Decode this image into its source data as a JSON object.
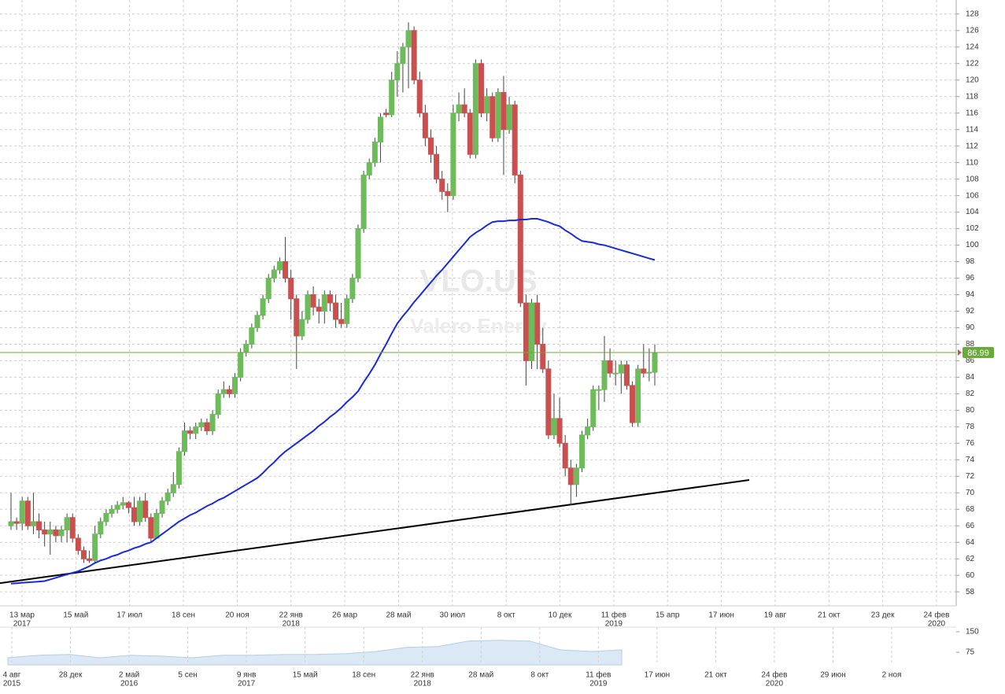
{
  "chart_data": {
    "type": "candlestick",
    "watermark": "VLO.US",
    "watermark_subtitle": "Valero Energy",
    "up_color": "#6dbb5a",
    "down_color": "#c9504f",
    "grid": true,
    "ylim": [
      56.3,
      129.7
    ],
    "yticks": [
      58,
      60,
      62,
      64,
      66,
      68,
      70,
      72,
      74,
      76,
      78,
      80,
      82,
      84,
      86,
      88,
      90,
      92,
      94,
      96,
      98,
      100,
      102,
      104,
      106,
      108,
      110,
      112,
      114,
      116,
      118,
      120,
      122,
      124,
      126,
      128
    ],
    "xtick_labels": [
      [
        "13 мар",
        "2017"
      ],
      [
        "15 май"
      ],
      [
        "17 июл"
      ],
      [
        "18 сен"
      ],
      [
        "20 ноя"
      ],
      [
        "22 янв",
        "2018"
      ],
      [
        "26 мар"
      ],
      [
        "28 май"
      ],
      [
        "30 июл"
      ],
      [
        "8 окт"
      ],
      [
        "10 дек"
      ],
      [
        "11 фев",
        "2019"
      ],
      [
        "15 апр"
      ],
      [
        "17 июн"
      ],
      [
        "19 авг"
      ],
      [
        "21 окт"
      ],
      [
        "23 дек"
      ],
      [
        "24 фев",
        "2020"
      ]
    ],
    "ohlc": [
      [
        66,
        70,
        65.5,
        66.5
      ],
      [
        66.5,
        67,
        65.5,
        66.3
      ],
      [
        66.3,
        69.5,
        65.5,
        69
      ],
      [
        69,
        69.5,
        65.5,
        66
      ],
      [
        66,
        70,
        65,
        66.5
      ],
      [
        66.5,
        67.5,
        64.5,
        65.5
      ],
      [
        65.5,
        66.5,
        63.5,
        65
      ],
      [
        65,
        66.5,
        62.5,
        65.5
      ],
      [
        65.5,
        66,
        64,
        64.8
      ],
      [
        64.8,
        66,
        64,
        65.5
      ],
      [
        65.5,
        67.5,
        64,
        67
      ],
      [
        67,
        67.5,
        64,
        64.5
      ],
      [
        64.5,
        65,
        62.5,
        63
      ],
      [
        63,
        63.5,
        61.5,
        62
      ],
      [
        62,
        63,
        61.5,
        61.8
      ],
      [
        61.8,
        66,
        61.5,
        65
      ],
      [
        65,
        67,
        64.5,
        66.5
      ],
      [
        66.5,
        68,
        66,
        67.5
      ],
      [
        67.5,
        68.5,
        67,
        68
      ],
      [
        68,
        69,
        67.5,
        68.5
      ],
      [
        68.5,
        69.5,
        68,
        68.8
      ],
      [
        68.8,
        69,
        67.5,
        68.2
      ],
      [
        68.2,
        69.5,
        66,
        66.5
      ],
      [
        66.5,
        69.5,
        66,
        69
      ],
      [
        69,
        70,
        66.5,
        67
      ],
      [
        67,
        67.5,
        64,
        64.5
      ],
      [
        64.5,
        68,
        64.5,
        67.5
      ],
      [
        67.5,
        69.5,
        67,
        69
      ],
      [
        69,
        70.5,
        68.5,
        70
      ],
      [
        70,
        72.5,
        69.5,
        71
      ],
      [
        71,
        75.5,
        70.5,
        75
      ],
      [
        75,
        78.5,
        74.5,
        77.5
      ],
      [
        77.5,
        78,
        76.5,
        77.2
      ],
      [
        77.2,
        78.5,
        76.5,
        78
      ],
      [
        78,
        79,
        77.5,
        78.5
      ],
      [
        78.5,
        79,
        77,
        77.5
      ],
      [
        77.5,
        80,
        77,
        79.5
      ],
      [
        79.5,
        82.5,
        79,
        82
      ],
      [
        82,
        83.5,
        81.5,
        82.5
      ],
      [
        82.5,
        83,
        81.5,
        82
      ],
      [
        82,
        84.5,
        81.5,
        84
      ],
      [
        84,
        87.5,
        83.5,
        87
      ],
      [
        87,
        88.5,
        86.5,
        88
      ],
      [
        88,
        90.5,
        87.5,
        90
      ],
      [
        90,
        92,
        89.5,
        91.5
      ],
      [
        91.5,
        94,
        91,
        93.5
      ],
      [
        93.5,
        96.5,
        93,
        96
      ],
      [
        96,
        97.5,
        95.5,
        97
      ],
      [
        97,
        98.5,
        96.5,
        98
      ],
      [
        98,
        101,
        95.5,
        96
      ],
      [
        96,
        97,
        91,
        93.5
      ],
      [
        93.5,
        94,
        85,
        89
      ],
      [
        89,
        92,
        88.5,
        91
      ],
      [
        91,
        94.5,
        90.5,
        94
      ],
      [
        94,
        95,
        91.5,
        92.5
      ],
      [
        92.5,
        93.5,
        90.5,
        92
      ],
      [
        92,
        94.5,
        90.5,
        94
      ],
      [
        94,
        94.5,
        92,
        93
      ],
      [
        93,
        94,
        90,
        91
      ],
      [
        91,
        93,
        90,
        90.5
      ],
      [
        90.5,
        94,
        90,
        93.5
      ],
      [
        93.5,
        96.5,
        93,
        96
      ],
      [
        96,
        102.5,
        95.5,
        102
      ],
      [
        102,
        109,
        101.5,
        108.5
      ],
      [
        108.5,
        110.5,
        108,
        110
      ],
      [
        110,
        113,
        109.5,
        112.5
      ],
      [
        112.5,
        116,
        110,
        115.5
      ],
      [
        116,
        116.5,
        115.5,
        115.8
      ],
      [
        115.8,
        121,
        115.5,
        120
      ],
      [
        120,
        123.5,
        118,
        122
      ],
      [
        122,
        124.5,
        118.5,
        124
      ],
      [
        124,
        127,
        119,
        126
      ],
      [
        126,
        126.5,
        119.5,
        120
      ],
      [
        120,
        121,
        115.5,
        116
      ],
      [
        116,
        117,
        112,
        113
      ],
      [
        113,
        114,
        110,
        111
      ],
      [
        111,
        112,
        107.5,
        108
      ],
      [
        108,
        109,
        105.5,
        106.5
      ],
      [
        106.5,
        107.5,
        104,
        106
      ],
      [
        106,
        117,
        105.5,
        116
      ],
      [
        116,
        118.5,
        115,
        117
      ],
      [
        117,
        119,
        115.5,
        116
      ],
      [
        116,
        116.5,
        110.5,
        111
      ],
      [
        111,
        122.5,
        110.5,
        122
      ],
      [
        122,
        122.5,
        115.5,
        116
      ],
      [
        116,
        119,
        115,
        118
      ],
      [
        118,
        118.5,
        112.5,
        113
      ],
      [
        113,
        119,
        112.5,
        118.5
      ],
      [
        118.5,
        120.5,
        108.5,
        114
      ],
      [
        114,
        118,
        113.5,
        117
      ],
      [
        117,
        117.5,
        107.5,
        108.5
      ],
      [
        108.5,
        109,
        92.5,
        93
      ],
      [
        93,
        94,
        83,
        86
      ],
      [
        86,
        93.5,
        85,
        93
      ],
      [
        93,
        94,
        85,
        88
      ],
      [
        88,
        90,
        84.5,
        85
      ],
      [
        85,
        86,
        76.5,
        77
      ],
      [
        77,
        82,
        76.5,
        79
      ],
      [
        79,
        81.5,
        75.5,
        76
      ],
      [
        76,
        77,
        72,
        73
      ],
      [
        73,
        74,
        68.5,
        71
      ],
      [
        71,
        73.5,
        69.5,
        73
      ],
      [
        73,
        77.5,
        72.5,
        77
      ],
      [
        77,
        79,
        76.5,
        78
      ],
      [
        78,
        83,
        77.5,
        82.5
      ],
      [
        82.5,
        83,
        80,
        82.5
      ],
      [
        82.5,
        89,
        81,
        86
      ],
      [
        86,
        87.5,
        84,
        84.5
      ],
      [
        84.5,
        86,
        83,
        84.5
      ],
      [
        84.5,
        86,
        82,
        85.5
      ],
      [
        85.5,
        86,
        82.5,
        83
      ],
      [
        83,
        83.5,
        78,
        78.5
      ],
      [
        78.5,
        85.5,
        78,
        85
      ],
      [
        85,
        88,
        84,
        84.5
      ],
      [
        84.5,
        87.5,
        83.5,
        84.6
      ],
      [
        84.6,
        88,
        83,
        86.99
      ]
    ],
    "ma": {
      "color": "#1a2ad8",
      "values": [
        59.0,
        59.05,
        59.1,
        59.15,
        59.2,
        59.25,
        59.3,
        59.5,
        59.7,
        59.9,
        60.1,
        60.3,
        60.5,
        60.8,
        61.1,
        61.5,
        61.8,
        62.0,
        62.3,
        62.5,
        62.8,
        63.0,
        63.3,
        63.5,
        63.8,
        64.0,
        64.5,
        65.0,
        65.5,
        66.0,
        66.5,
        66.9,
        67.3,
        67.6,
        68.0,
        68.4,
        68.7,
        69.1,
        69.4,
        69.8,
        70.2,
        70.6,
        71.0,
        71.4,
        71.8,
        72.4,
        73.1,
        73.7,
        74.4,
        75.0,
        75.5,
        76.0,
        76.5,
        77.0,
        77.5,
        78.1,
        78.6,
        79.2,
        79.7,
        80.3,
        81.0,
        81.6,
        82.3,
        83.4,
        84.4,
        85.5,
        86.8,
        88.0,
        89.3,
        90.5,
        91.4,
        92.2,
        93.1,
        93.9,
        94.7,
        95.5,
        96.3,
        97.0,
        97.8,
        98.6,
        99.4,
        100.2,
        101.0,
        101.5,
        101.9,
        102.4,
        102.8,
        102.9,
        102.9,
        103.0,
        103.0,
        103.1,
        103.1,
        103.2,
        103.2,
        103.0,
        102.8,
        102.5,
        102.3,
        101.8,
        101.4,
        100.9,
        100.5,
        100.4,
        100.3,
        100.1,
        100.0,
        99.8,
        99.6,
        99.4,
        99.2,
        99.0,
        98.8,
        98.6,
        98.4,
        98.2
      ]
    },
    "trendline": {
      "color": "#000000",
      "values": [
        59.05,
        71.55
      ]
    },
    "last_price_color": "#6aaa3a",
    "navigator": {
      "color": "#dbe8f5",
      "ylim": [
        29,
        167
      ],
      "yticks": [
        150,
        75
      ],
      "values": [
        55,
        64,
        67,
        55,
        64,
        61,
        55,
        64,
        64,
        67,
        67,
        70,
        78,
        93,
        96,
        116,
        119,
        116,
        84,
        78,
        84
      ],
      "xtick_labels": [
        [
          "4 авг",
          "2015"
        ],
        [
          "28 дек"
        ],
        [
          "2 май",
          "2016"
        ],
        [
          "5 сен"
        ],
        [
          "9 янв",
          "2017"
        ],
        [
          "15 май"
        ],
        [
          "18 сен"
        ],
        [
          "22 янв",
          "2018"
        ],
        [
          "28 май"
        ],
        [
          "8 окт"
        ],
        [
          "11 фев",
          "2019"
        ],
        [
          "17 июн"
        ],
        [
          "21 окт"
        ],
        [
          "24 фев",
          "2020"
        ],
        [
          "29 июн"
        ],
        [
          "2 ноя"
        ]
      ]
    }
  }
}
